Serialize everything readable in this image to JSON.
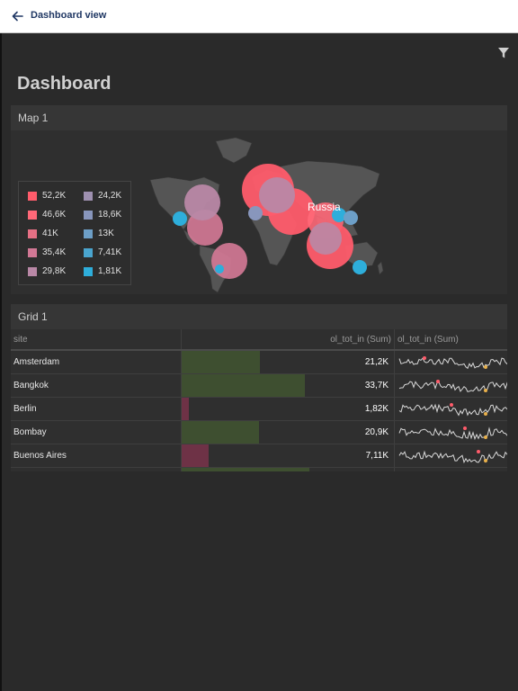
{
  "topbar": {
    "title": "Dashboard view",
    "back_icon": "arrow-left-icon"
  },
  "colors": {
    "accent": "#1f3763",
    "bar_green": "#3e4f30",
    "bar_red": "#6e3246",
    "spark": "#d8d8d8"
  },
  "dashboard": {
    "title": "Dashboard",
    "filter_icon": "filter-icon"
  },
  "map": {
    "title": "Map 1",
    "country_label": "Russia",
    "legend": [
      {
        "label": "52,2K",
        "color": "#ff5c6b"
      },
      {
        "label": "46,6K",
        "color": "#ff6878"
      },
      {
        "label": "41K",
        "color": "#e67085"
      },
      {
        "label": "35,4K",
        "color": "#d27895"
      },
      {
        "label": "29,8K",
        "color": "#b988a6"
      },
      {
        "label": "24,2K",
        "color": "#9e90b0"
      },
      {
        "label": "18,6K",
        "color": "#8896bc"
      },
      {
        "label": "13K",
        "color": "#6d9fc7"
      },
      {
        "label": "7,41K",
        "color": "#4aa5cf"
      },
      {
        "label": "1,81K",
        "color": "#2eaedb"
      }
    ]
  },
  "grid": {
    "title": "Grid 1",
    "columns": [
      "site",
      "ol_tot_in (Sum)",
      "ol_tot_in (Sum)"
    ],
    "rows": [
      {
        "site": "Amsterdam",
        "value": "21,2K",
        "fraction": 0.37,
        "bar": "green"
      },
      {
        "site": "Bangkok",
        "value": "33,7K",
        "fraction": 0.58,
        "bar": "green"
      },
      {
        "site": "Berlin",
        "value": "1,82K",
        "fraction": 0.035,
        "bar": "red"
      },
      {
        "site": "Bombay",
        "value": "20,9K",
        "fraction": 0.365,
        "bar": "green"
      },
      {
        "site": "Buenos Aires",
        "value": "7,11K",
        "fraction": 0.125,
        "bar": "red"
      },
      {
        "site": "",
        "value": "",
        "fraction": 0.6,
        "bar": "green"
      }
    ]
  }
}
